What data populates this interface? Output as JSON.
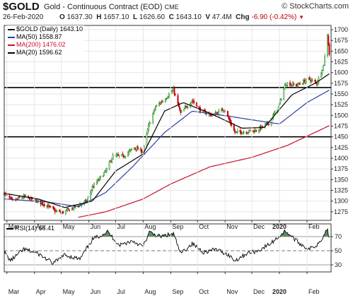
{
  "header": {
    "symbol": "$GOLD",
    "name": "Gold - Continuous Contract (EOD)",
    "exchange": "CME",
    "watermark": "© StockCharts.com",
    "date": "26-Feb-2020",
    "ohlc": {
      "o_label": "O",
      "open": "1637.30",
      "h_label": "H",
      "high": "1657.10",
      "l_label": "L",
      "low": "1626.60",
      "c_label": "C",
      "close": "1643.10",
      "v_label": "V",
      "volume": "47.4M",
      "chg_label": "Chg",
      "change": "-6.90 (-0.42%)",
      "down_glyph": "▼"
    }
  },
  "legend": {
    "main": "$GOLD (Daily) 1643.10",
    "ma50": "MA(50) 1558.87",
    "ma200": "MA(200) 1476.02",
    "ma20": "MA(20) 1596.62"
  },
  "rsi_legend": "RSI(14) 66.41",
  "colors": {
    "up": "#1a8c1a",
    "down": "#cc0000",
    "ma50": "#2b3fa6",
    "ma200": "#c8102e",
    "ma20": "#000000",
    "rsi": "#000000",
    "rsi_fill": "#5f8f5f"
  },
  "chart_data": [
    {
      "type": "candlestick",
      "title": "$GOLD (Daily) 1643.10",
      "x_ticks": [
        "Mar",
        "Apr",
        "May",
        "Jun",
        "Jul",
        "Aug",
        "Sep",
        "Oct",
        "Nov",
        "Dec",
        "2020",
        "Feb"
      ],
      "y_ticks": [
        1275,
        1300,
        1325,
        1350,
        1375,
        1400,
        1425,
        1450,
        1475,
        1500,
        1525,
        1550,
        1575,
        1600,
        1625,
        1650,
        1675,
        1700
      ],
      "ylim": [
        1255,
        1710
      ],
      "x_range": [
        "2019-02-26",
        "2020-02-28"
      ],
      "horizontal_lines": [
        1450,
        1565
      ],
      "price_keyframes": [
        [
          "2019-02-26",
          1318
        ],
        [
          "2019-03-07",
          1300
        ],
        [
          "2019-03-20",
          1310
        ],
        [
          "2019-04-01",
          1302
        ],
        [
          "2019-04-15",
          1290
        ],
        [
          "2019-04-24",
          1277
        ],
        [
          "2019-05-02",
          1273
        ],
        [
          "2019-05-15",
          1285
        ],
        [
          "2019-05-30",
          1300
        ],
        [
          "2019-06-05",
          1332
        ],
        [
          "2019-06-20",
          1370
        ],
        [
          "2019-06-28",
          1405
        ],
        [
          "2019-07-10",
          1405
        ],
        [
          "2019-07-22",
          1425
        ],
        [
          "2019-08-01",
          1415
        ],
        [
          "2019-08-07",
          1475
        ],
        [
          "2019-08-15",
          1520
        ],
        [
          "2019-08-26",
          1540
        ],
        [
          "2019-09-04",
          1560
        ],
        [
          "2019-09-12",
          1505
        ],
        [
          "2019-09-25",
          1535
        ],
        [
          "2019-10-05",
          1510
        ],
        [
          "2019-10-18",
          1500
        ],
        [
          "2019-10-31",
          1515
        ],
        [
          "2019-11-12",
          1460
        ],
        [
          "2019-11-25",
          1462
        ],
        [
          "2019-12-06",
          1465
        ],
        [
          "2019-12-20",
          1482
        ],
        [
          "2019-12-31",
          1520
        ],
        [
          "2020-01-08",
          1575
        ],
        [
          "2020-01-20",
          1570
        ],
        [
          "2020-02-03",
          1585
        ],
        [
          "2020-02-12",
          1575
        ],
        [
          "2020-02-20",
          1620
        ],
        [
          "2020-02-24",
          1690
        ],
        [
          "2020-02-26",
          1643
        ]
      ],
      "series": [
        {
          "name": "MA(50)",
          "keyframes": [
            [
              "2019-02-26",
              1305
            ],
            [
              "2019-04-15",
              1298
            ],
            [
              "2019-05-20",
              1287
            ],
            [
              "2019-06-20",
              1320
            ],
            [
              "2019-07-20",
              1380
            ],
            [
              "2019-08-25",
              1460
            ],
            [
              "2019-09-25",
              1510
            ],
            [
              "2019-10-30",
              1500
            ],
            [
              "2019-11-30",
              1490
            ],
            [
              "2020-01-01",
              1480
            ],
            [
              "2020-02-01",
              1530
            ],
            [
              "2020-02-26",
              1559
            ]
          ]
        },
        {
          "name": "MA(200)",
          "keyframes": [
            [
              "2019-05-20",
              1262
            ],
            [
              "2019-06-20",
              1275
            ],
            [
              "2019-08-01",
              1305
            ],
            [
              "2019-09-01",
              1340
            ],
            [
              "2019-10-15",
              1380
            ],
            [
              "2019-12-01",
              1402
            ],
            [
              "2020-01-10",
              1430
            ],
            [
              "2020-02-26",
              1476
            ]
          ]
        },
        {
          "name": "MA(20)",
          "keyframes": [
            [
              "2019-02-26",
              1318
            ],
            [
              "2019-04-05",
              1305
            ],
            [
              "2019-05-05",
              1285
            ],
            [
              "2019-06-05",
              1300
            ],
            [
              "2019-07-01",
              1370
            ],
            [
              "2019-08-01",
              1410
            ],
            [
              "2019-08-25",
              1510
            ],
            [
              "2019-09-15",
              1530
            ],
            [
              "2019-10-15",
              1505
            ],
            [
              "2019-11-20",
              1470
            ],
            [
              "2019-12-15",
              1472
            ],
            [
              "2020-01-15",
              1548
            ],
            [
              "2020-02-10",
              1575
            ],
            [
              "2020-02-26",
              1597
            ]
          ]
        }
      ]
    },
    {
      "type": "line",
      "title": "RSI(14) 66.41",
      "y_ticks": [
        30,
        50,
        70
      ],
      "ylim": [
        20,
        88
      ],
      "reference_lines": [
        30,
        50,
        70
      ],
      "x_ticks": [
        "Mar",
        "Apr",
        "May",
        "Jun",
        "Jul",
        "Aug",
        "Sep",
        "Oct",
        "Nov",
        "Dec",
        "2020",
        "Feb"
      ],
      "keyframes": [
        [
          "2019-02-26",
          48
        ],
        [
          "2019-03-05",
          36
        ],
        [
          "2019-03-20",
          52
        ],
        [
          "2019-04-05",
          46
        ],
        [
          "2019-04-22",
          32
        ],
        [
          "2019-05-05",
          44
        ],
        [
          "2019-05-22",
          38
        ],
        [
          "2019-06-05",
          66
        ],
        [
          "2019-06-22",
          77
        ],
        [
          "2019-07-05",
          58
        ],
        [
          "2019-07-20",
          64
        ],
        [
          "2019-08-01",
          56
        ],
        [
          "2019-08-08",
          76
        ],
        [
          "2019-08-20",
          70
        ],
        [
          "2019-09-04",
          74
        ],
        [
          "2019-09-12",
          46
        ],
        [
          "2019-09-25",
          60
        ],
        [
          "2019-10-08",
          48
        ],
        [
          "2019-10-22",
          52
        ],
        [
          "2019-11-05",
          44
        ],
        [
          "2019-11-12",
          36
        ],
        [
          "2019-11-25",
          46
        ],
        [
          "2019-12-08",
          50
        ],
        [
          "2019-12-22",
          60
        ],
        [
          "2020-01-02",
          72
        ],
        [
          "2020-01-08",
          78
        ],
        [
          "2020-01-22",
          62
        ],
        [
          "2020-02-03",
          52
        ],
        [
          "2020-02-12",
          58
        ],
        [
          "2020-02-20",
          72
        ],
        [
          "2020-02-24",
          82
        ],
        [
          "2020-02-26",
          66
        ]
      ]
    }
  ]
}
